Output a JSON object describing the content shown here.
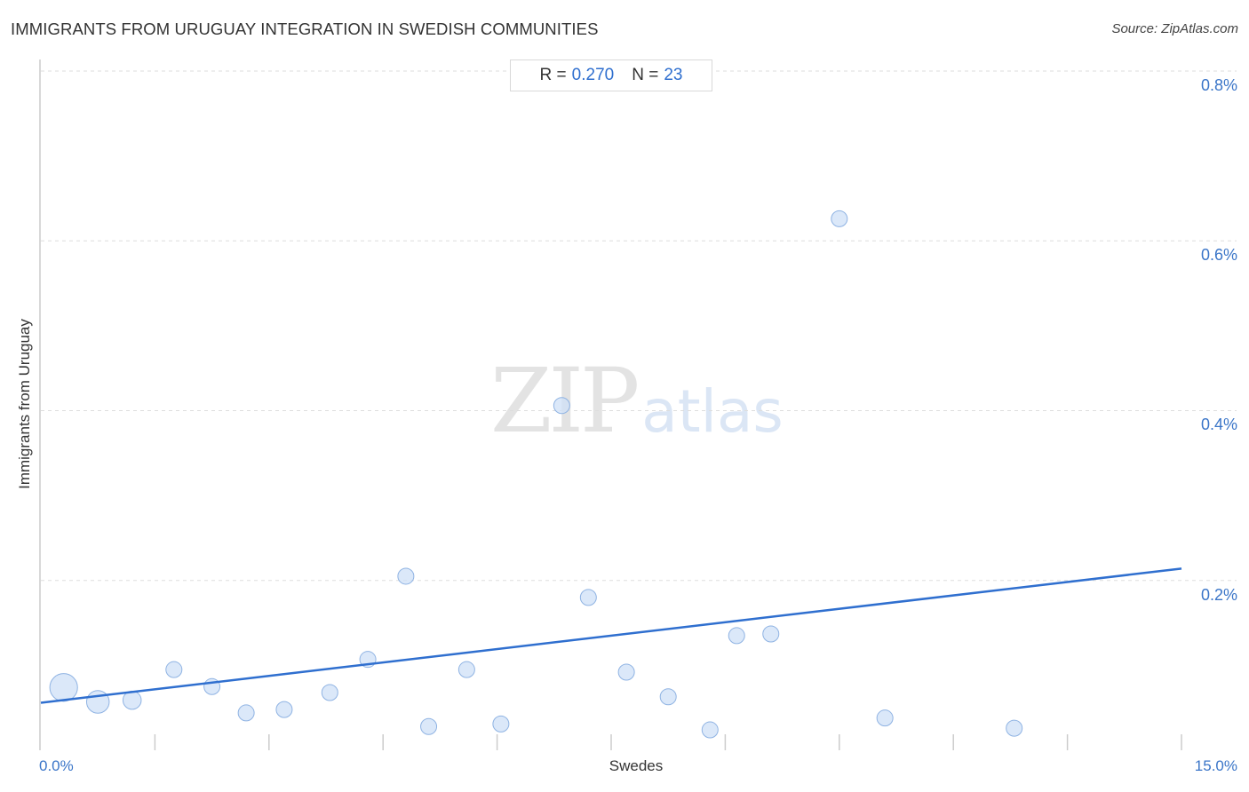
{
  "header": {
    "title": "IMMIGRANTS FROM URUGUAY INTEGRATION IN SWEDISH COMMUNITIES",
    "source": "Source: ZipAtlas.com"
  },
  "stats": {
    "r_label": "R =",
    "r_value": "0.270",
    "n_label": "N =",
    "n_value": "23"
  },
  "watermark": {
    "zip": "ZIP",
    "atlas": "atlas"
  },
  "colors": {
    "accent": "#2f6fcf",
    "point_fill": "#cfe0f7",
    "point_stroke": "#8fb3e3",
    "grid": "#dddddd"
  },
  "chart_data": {
    "type": "scatter",
    "xlabel": "Swedes",
    "ylabel": "Immigrants from Uruguay",
    "xlim": [
      0,
      15
    ],
    "ylim": [
      0,
      0.8
    ],
    "x_tick_labels": [
      {
        "value": 0,
        "label": "0.0%"
      },
      {
        "value": 15,
        "label": "15.0%"
      }
    ],
    "y_tick_labels": [
      {
        "value": 0.2,
        "label": "0.2%"
      },
      {
        "value": 0.4,
        "label": "0.4%"
      },
      {
        "value": 0.6,
        "label": "0.6%"
      },
      {
        "value": 0.8,
        "label": "0.8%"
      }
    ],
    "grid": "horizontal dashed",
    "trendline": {
      "x": [
        0,
        15
      ],
      "y": [
        0.056,
        0.214
      ]
    },
    "points": [
      {
        "x": 0.3,
        "y": 0.074,
        "weight": 3
      },
      {
        "x": 0.75,
        "y": 0.057,
        "weight": 2
      },
      {
        "x": 1.2,
        "y": 0.059,
        "weight": 1.3
      },
      {
        "x": 1.75,
        "y": 0.095,
        "weight": 1
      },
      {
        "x": 2.25,
        "y": 0.075,
        "weight": 1
      },
      {
        "x": 2.7,
        "y": 0.044,
        "weight": 1
      },
      {
        "x": 3.2,
        "y": 0.048,
        "weight": 1
      },
      {
        "x": 3.8,
        "y": 0.068,
        "weight": 1
      },
      {
        "x": 4.3,
        "y": 0.107,
        "weight": 1
      },
      {
        "x": 4.8,
        "y": 0.205,
        "weight": 1
      },
      {
        "x": 5.1,
        "y": 0.028,
        "weight": 1
      },
      {
        "x": 5.6,
        "y": 0.095,
        "weight": 1
      },
      {
        "x": 6.05,
        "y": 0.031,
        "weight": 1
      },
      {
        "x": 6.85,
        "y": 0.406,
        "weight": 1
      },
      {
        "x": 7.2,
        "y": 0.18,
        "weight": 1
      },
      {
        "x": 7.7,
        "y": 0.092,
        "weight": 1
      },
      {
        "x": 8.25,
        "y": 0.063,
        "weight": 1
      },
      {
        "x": 8.8,
        "y": 0.024,
        "weight": 1
      },
      {
        "x": 9.15,
        "y": 0.135,
        "weight": 1
      },
      {
        "x": 9.6,
        "y": 0.137,
        "weight": 1
      },
      {
        "x": 10.5,
        "y": 0.626,
        "weight": 1
      },
      {
        "x": 11.1,
        "y": 0.038,
        "weight": 1
      },
      {
        "x": 12.8,
        "y": 0.026,
        "weight": 1
      }
    ]
  }
}
